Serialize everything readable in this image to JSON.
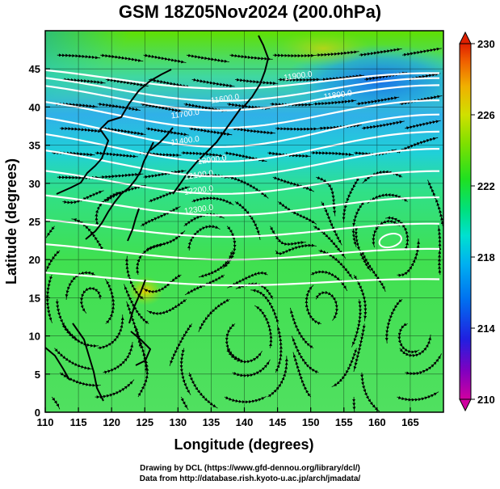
{
  "title": "GSM 18Z05Nov2024 (200.0hPa)",
  "x_axis": {
    "label": "Longitude (degrees)",
    "ticks": [
      110,
      115,
      120,
      125,
      130,
      135,
      140,
      145,
      150,
      155,
      160,
      165
    ],
    "range": [
      110,
      170
    ]
  },
  "y_axis": {
    "label": "Latitude  (degrees)",
    "ticks": [
      0,
      5,
      10,
      15,
      20,
      25,
      30,
      35,
      40,
      45
    ],
    "range": [
      0,
      50
    ]
  },
  "colorbar": {
    "ticks": [
      210,
      214,
      218,
      222,
      226,
      230
    ],
    "range": [
      210,
      230
    ],
    "colors": [
      "#d000a0",
      "#8000c0",
      "#2020e0",
      "#0070f0",
      "#00b0f0",
      "#00e0d0",
      "#00e080",
      "#20e020",
      "#80e000",
      "#d0e000",
      "#f0b000",
      "#f06000",
      "#e02000"
    ]
  },
  "contour_labels": [
    {
      "text": "11900.0",
      "lon": 146,
      "lat": 43.5
    },
    {
      "text": "11800.0",
      "lon": 152,
      "lat": 41
    },
    {
      "text": "11700.0",
      "lon": 129,
      "lat": 38.5
    },
    {
      "text": "11600.0",
      "lon": 135,
      "lat": 40.5
    },
    {
      "text": "11400.0",
      "lon": 129,
      "lat": 35
    },
    {
      "text": "12000.0",
      "lon": 133,
      "lat": 32.5
    },
    {
      "text": "12100.0",
      "lon": 131,
      "lat": 30.5
    },
    {
      "text": "12200.0",
      "lon": 131,
      "lat": 28.5
    },
    {
      "text": "12300.0",
      "lon": 131,
      "lat": 26
    }
  ],
  "credits": {
    "line1": "Drawing by DCL (https://www.gfd-dennou.org/library/dcl/)",
    "line2": "Data from http://database.rish.kyoto-u.ac.jp/arch/jmadata/"
  }
}
